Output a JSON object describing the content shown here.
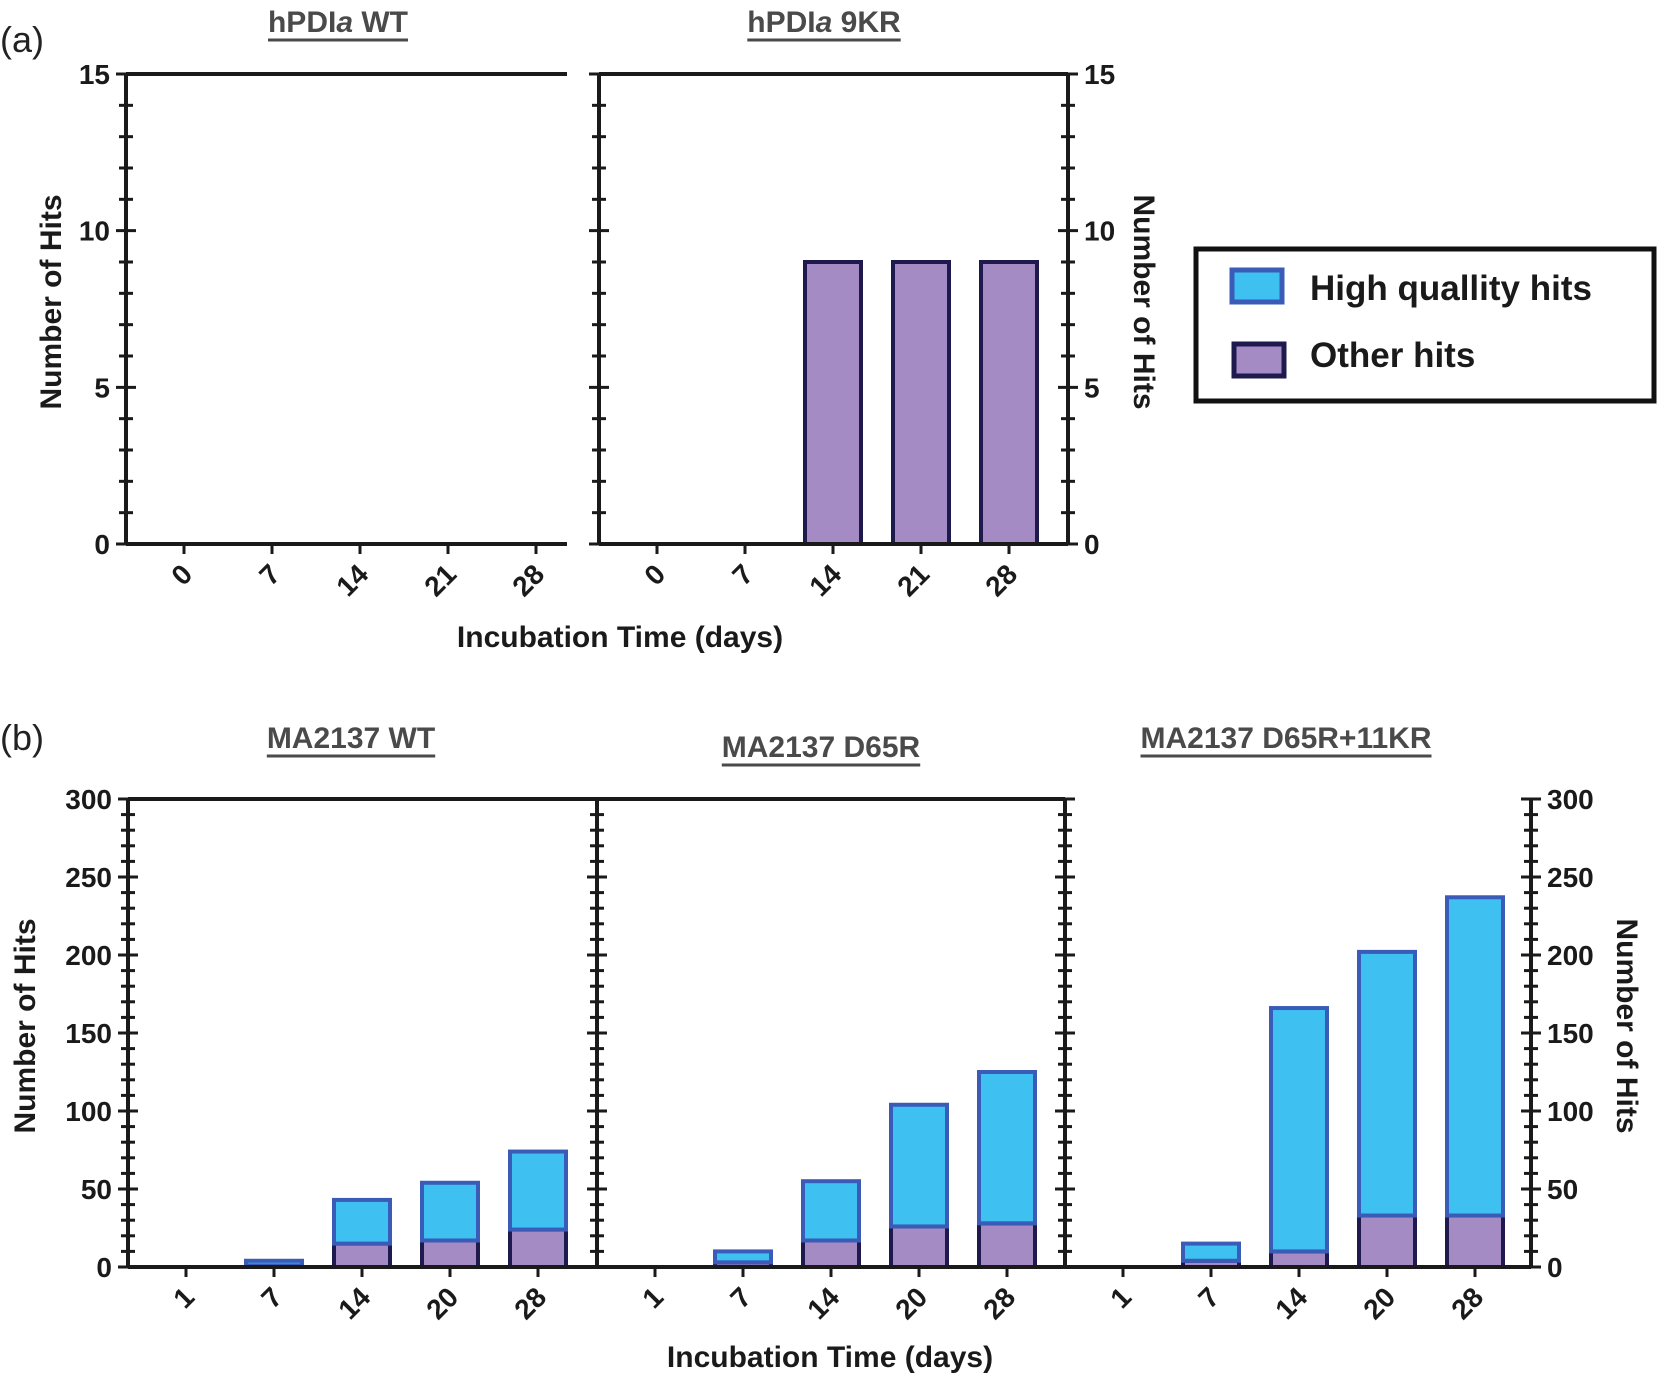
{
  "panel_labels": [
    "(a)",
    "(b)"
  ],
  "legend": {
    "entries": [
      {
        "label": "High quallity hits",
        "fill": "#3ec1f1",
        "stroke": "#3a5cb8"
      },
      {
        "label": "Other hits",
        "fill": "#a48bc4",
        "stroke": "#1e1a4e"
      }
    ]
  },
  "colors": {
    "high_fill": "#3ec1f1",
    "high_stroke": "#3a5cb8",
    "other_fill": "#a48bc4",
    "other_stroke": "#1e1a4e",
    "axis": "#1a1a1a",
    "title_text": "#4a4a4a"
  },
  "chart_data": [
    {
      "type": "bar",
      "stacked": true,
      "title": "hPDIa WT",
      "title_parts": [
        "hPDI",
        "a",
        " WT"
      ],
      "panel": "(a)",
      "categories": [
        "0",
        "7",
        "14",
        "21",
        "28"
      ],
      "xlabel": "Incubation Time (days)",
      "ylabel": "Number of Hits",
      "ylim": [
        0,
        15
      ],
      "yticks": [
        "0",
        "5",
        "10",
        "15"
      ],
      "series": [
        {
          "name": "Other hits",
          "values": [
            0,
            0,
            0,
            0,
            0
          ]
        },
        {
          "name": "High quallity hits",
          "values": [
            0,
            0,
            0,
            0,
            0
          ]
        }
      ]
    },
    {
      "type": "bar",
      "stacked": true,
      "title": "hPDIa 9KR",
      "title_parts": [
        "hPDI",
        "a",
        " 9KR"
      ],
      "panel": "(a)",
      "categories": [
        "0",
        "7",
        "14",
        "21",
        "28"
      ],
      "xlabel": "Incubation Time (days)",
      "ylabel": "Number of Hits",
      "ylim": [
        0,
        15
      ],
      "yticks": [
        "0",
        "5",
        "10",
        "15"
      ],
      "series": [
        {
          "name": "Other hits",
          "values": [
            0,
            0,
            9,
            9,
            9
          ]
        },
        {
          "name": "High quallity hits",
          "values": [
            0,
            0,
            0,
            0,
            0
          ]
        }
      ]
    },
    {
      "type": "bar",
      "stacked": true,
      "title": "MA2137 WT",
      "panel": "(b)",
      "categories": [
        "1",
        "7",
        "14",
        "20",
        "28"
      ],
      "xlabel": "Incubation Time (days)",
      "ylabel": "Number of Hits",
      "ylim": [
        0,
        300
      ],
      "yticks": [
        "0",
        "50",
        "100",
        "150",
        "200",
        "250",
        "300"
      ],
      "series": [
        {
          "name": "Other hits",
          "values": [
            0,
            1,
            15,
            17,
            24
          ]
        },
        {
          "name": "High quallity hits",
          "values": [
            0,
            3,
            28,
            37,
            50
          ]
        }
      ]
    },
    {
      "type": "bar",
      "stacked": true,
      "title": "MA2137 D65R",
      "panel": "(b)",
      "categories": [
        "1",
        "7",
        "14",
        "20",
        "28"
      ],
      "xlabel": "Incubation Time (days)",
      "ylabel": "Number of Hits",
      "ylim": [
        0,
        300
      ],
      "yticks": [
        "0",
        "50",
        "100",
        "150",
        "200",
        "250",
        "300"
      ],
      "series": [
        {
          "name": "Other hits",
          "values": [
            0,
            3,
            17,
            26,
            28
          ]
        },
        {
          "name": "High quallity hits",
          "values": [
            0,
            7,
            38,
            78,
            97
          ]
        }
      ]
    },
    {
      "type": "bar",
      "stacked": true,
      "title": "MA2137 D65R+11KR",
      "panel": "(b)",
      "categories": [
        "1",
        "7",
        "14",
        "20",
        "28"
      ],
      "xlabel": "Incubation Time (days)",
      "ylabel": "Number of Hits",
      "ylim": [
        0,
        300
      ],
      "yticks": [
        "0",
        "50",
        "100",
        "150",
        "200",
        "250",
        "300"
      ],
      "series": [
        {
          "name": "Other hits",
          "values": [
            0,
            4,
            10,
            33,
            33
          ]
        },
        {
          "name": "High quallity hits",
          "values": [
            0,
            11,
            156,
            169,
            204
          ]
        }
      ]
    }
  ]
}
